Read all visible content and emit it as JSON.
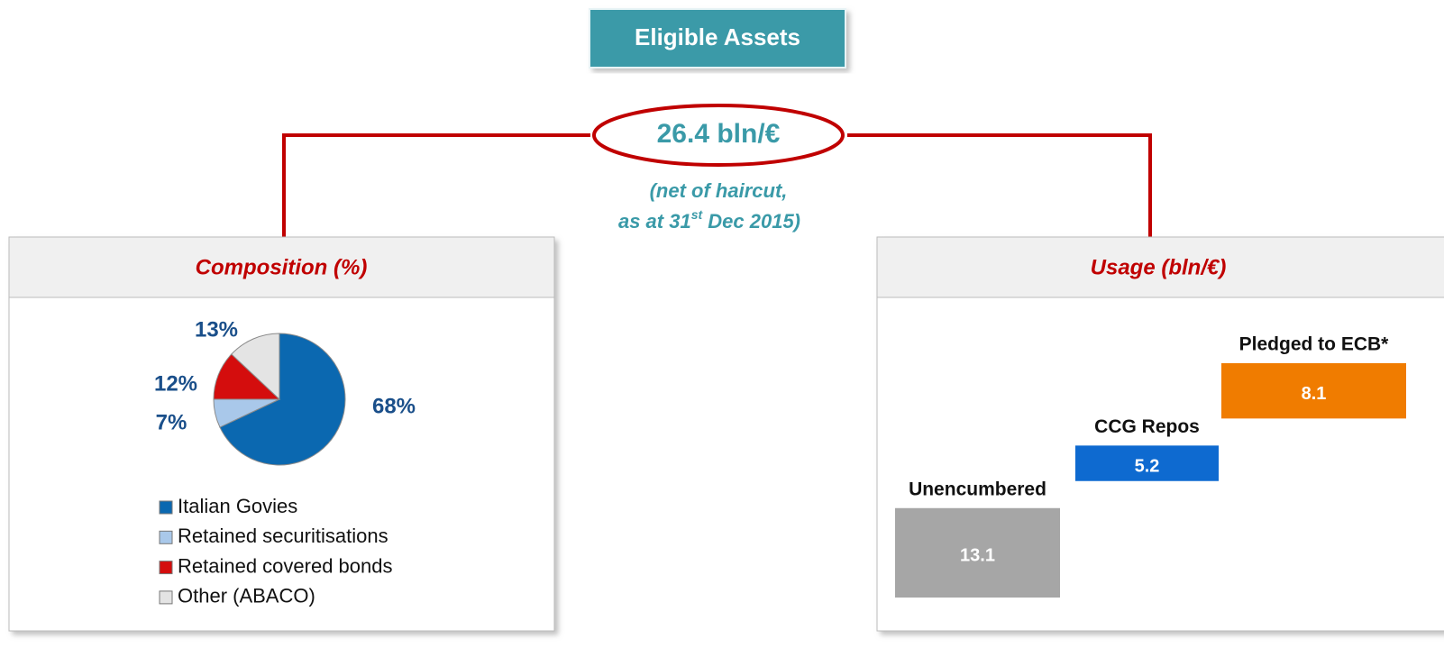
{
  "header": {
    "title": "Eligible Assets",
    "total": "26.4 bln/€",
    "note_line1": "(net of haircut,",
    "note_line2_pre": "as at 31",
    "note_sup": "st",
    "note_line2_post": " Dec 2015)"
  },
  "chart_data": [
    {
      "type": "pie",
      "title": "Composition (%)",
      "categories": [
        "Italian Govies",
        "Retained securitisations",
        "Retained covered bonds",
        "Other (ABACO)"
      ],
      "values": [
        68,
        7,
        12,
        13
      ],
      "value_labels": [
        "68%",
        "7%",
        "12%",
        "13%"
      ],
      "colors": [
        "#0b68b0",
        "#a9c8ea",
        "#d40d0d",
        "#e4e4e4"
      ]
    },
    {
      "type": "waterfall",
      "title": "Usage (bln/€)",
      "categories": [
        "Unencumbered",
        "CCG Repos",
        "Pledged to ECB*"
      ],
      "values": [
        13.1,
        5.2,
        8.1
      ],
      "colors": [
        "#a6a6a6",
        "#0e6ad0",
        "#f07c00"
      ]
    }
  ]
}
